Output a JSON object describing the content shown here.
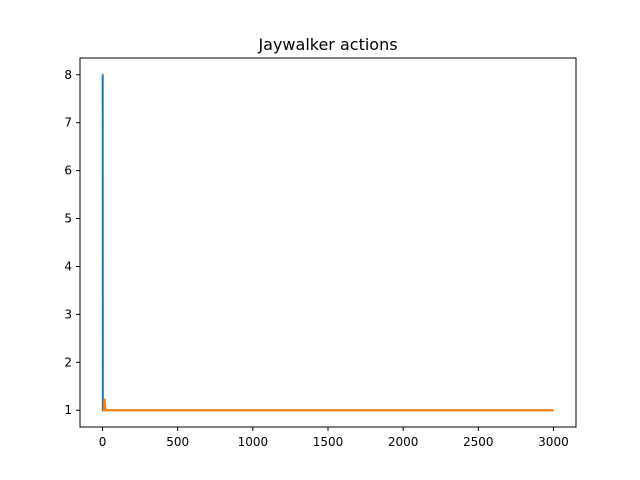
{
  "chart_data": {
    "type": "line",
    "title": "Jaywalker actions",
    "xlabel": "",
    "ylabel": "",
    "xlim": [
      -150,
      3150
    ],
    "ylim": [
      0.65,
      8.35
    ],
    "xticks": [
      0,
      500,
      1000,
      1500,
      2000,
      2500,
      3000
    ],
    "yticks": [
      1,
      2,
      3,
      4,
      5,
      6,
      7,
      8
    ],
    "xtick_labels": [
      "0",
      "500",
      "1000",
      "1500",
      "2000",
      "2500",
      "3000"
    ],
    "ytick_labels": [
      "1",
      "2",
      "3",
      "4",
      "5",
      "6",
      "7",
      "8"
    ],
    "grid": false,
    "legend": false,
    "series": [
      {
        "color": "#1f77b4",
        "x": [
          0,
          1,
          2,
          3,
          5,
          10,
          20,
          100,
          500,
          1000,
          2000,
          3000
        ],
        "y": [
          8,
          8,
          1,
          1,
          1,
          1,
          1,
          1,
          1,
          1,
          1,
          1
        ]
      },
      {
        "color": "#ff7f0e",
        "x": [
          0,
          5,
          10,
          12,
          15,
          20,
          100,
          500,
          1000,
          2000,
          3000
        ],
        "y": [
          1,
          1,
          1,
          1.22,
          1.22,
          1,
          1,
          1,
          1,
          1,
          1
        ]
      }
    ]
  }
}
